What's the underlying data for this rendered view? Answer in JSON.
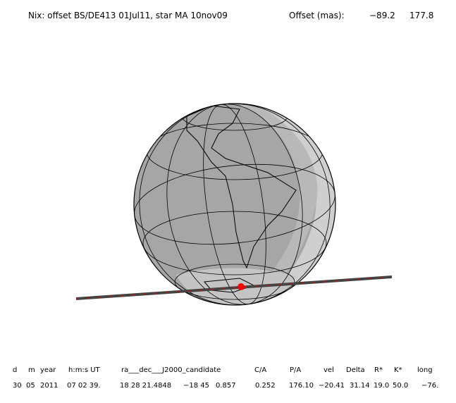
{
  "header": {
    "title": "Nix: offset BS/DE413 01Jul11, star MA 10nov09",
    "offset_label": "Offset (mas):",
    "offset_values": [
      "−89.2",
      "177.8"
    ]
  },
  "table": {
    "columns": [
      "d",
      "m",
      "year",
      "h:m:s UT",
      "ra___dec___J2000_candidate",
      "C/A",
      "P/A",
      "vel",
      "Delta",
      "R*",
      "K*",
      "long"
    ],
    "row": [
      "30",
      "05",
      "2011",
      "07 02 39.",
      "18 28 21.4848",
      "−18 45",
      "0.857",
      "0.252",
      "176.10",
      "−20.41",
      "31.14",
      "19.0",
      "50.0",
      "−76."
    ]
  }
}
